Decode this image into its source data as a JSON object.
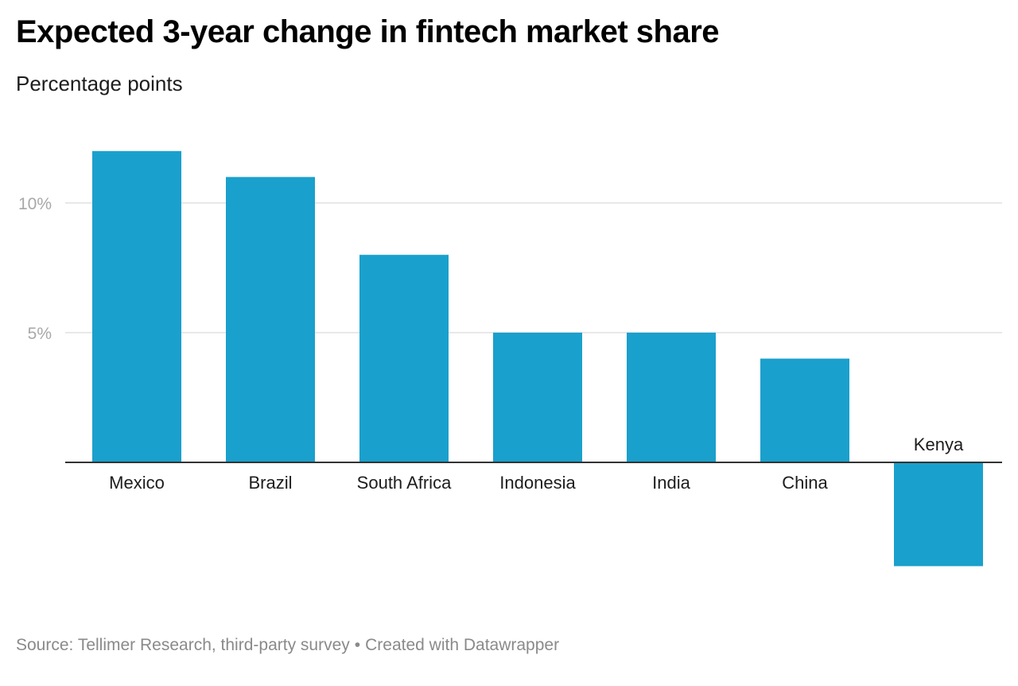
{
  "chart_data": {
    "type": "bar",
    "title": "Expected 3-year change in fintech market share",
    "subtitle": "Percentage points",
    "categories": [
      "Mexico",
      "Brazil",
      "South Africa",
      "Indonesia",
      "India",
      "China",
      "Kenya"
    ],
    "values": [
      12,
      11,
      8,
      5,
      5,
      4,
      -4
    ],
    "yticks": [
      {
        "value": 5,
        "label": "5%"
      },
      {
        "value": 10,
        "label": "10%"
      }
    ],
    "ylim": [
      -4,
      12
    ],
    "grid": true,
    "bar_color": "#1aa0cc",
    "xlabel": "",
    "ylabel": ""
  },
  "footer": {
    "source": "Source: Tellimer Research, third-party survey",
    "separator": "•",
    "credit": "Created with Datawrapper"
  }
}
